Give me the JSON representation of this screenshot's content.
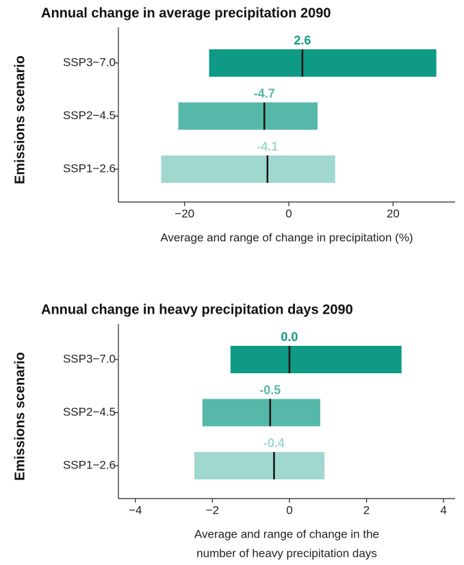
{
  "chart_data": [
    {
      "type": "range_bar",
      "title": "Annual change in average precipitation 2090",
      "ylabel": "Emissions scenario",
      "xlabel": [
        "Average and range of change in precipitation (%)"
      ],
      "categories": [
        "SSP3−7.0",
        "SSP2−4.5",
        "SSP1−2.6"
      ],
      "min": [
        -15.3,
        -21.2,
        -24.5
      ],
      "max": [
        28.3,
        5.5,
        8.9
      ],
      "values": [
        2.6,
        -4.7,
        -4.1
      ],
      "colors": [
        "#0e9a84",
        "#56b8a8",
        "#a0d8d0"
      ],
      "xlim": [
        -32.7,
        31.9
      ],
      "xticks": [
        {
          "value": -20,
          "label": "−20"
        },
        0,
        20
      ]
    },
    {
      "type": "range_bar",
      "title": "Annual change in heavy precipitation days 2090",
      "ylabel": "Emissions scenario",
      "xlabel": [
        "Average and range of change in the",
        "number of heavy precipitation days"
      ],
      "categories": [
        "SSP3−7.0",
        "SSP2−4.5",
        "SSP1−2.6"
      ],
      "min": [
        -1.53,
        -2.26,
        -2.47
      ],
      "max": [
        2.91,
        0.8,
        0.91
      ],
      "values": [
        0,
        -0.5,
        -0.4
      ],
      "value_labels": [
        "0.0",
        "-0.5",
        "-0.4"
      ],
      "colors": [
        "#0e9a84",
        "#56b8a8",
        "#a0d8d0"
      ],
      "xlim": [
        -4.44,
        4.3
      ],
      "xticks": [
        {
          "value": -4,
          "label": "−4"
        },
        {
          "value": -2,
          "label": "−2"
        },
        0,
        2,
        4
      ]
    }
  ]
}
